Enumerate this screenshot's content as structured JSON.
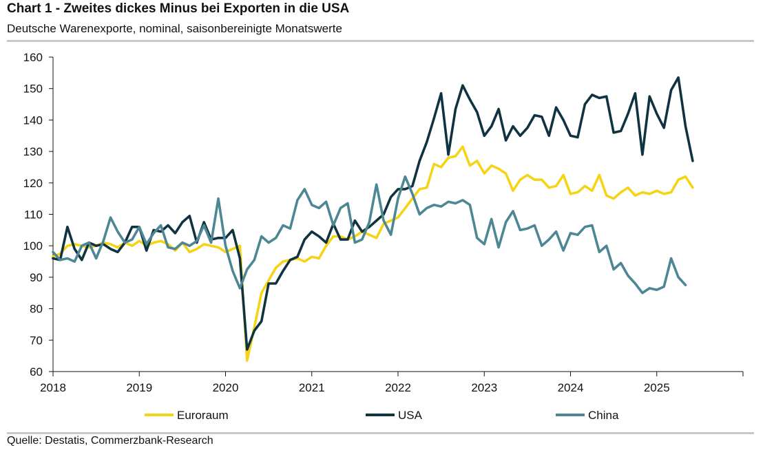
{
  "header": {
    "title": "Chart 1 - Zweites dickes Minus bei Exporten in die USA",
    "subtitle": "Deutsche Warenexporte, nominal, saisonbereinigte Monatswerte"
  },
  "footer": {
    "source": "Quelle: Destatis, Commerzbank-Research"
  },
  "chart_data": {
    "type": "line",
    "title": "Chart 1 - Zweites dickes Minus bei Exporten in die USA",
    "subtitle": "Deutsche Warenexporte, nominal, saisonbereinigte Monatswerte",
    "xlabel": "",
    "ylabel": "",
    "ylim": [
      60,
      160
    ],
    "yticks": [
      60,
      70,
      80,
      90,
      100,
      110,
      120,
      130,
      140,
      150,
      160
    ],
    "x_start": "2018-01",
    "x_end": "2025-12",
    "xticks": [
      "2018",
      "2019",
      "2020",
      "2021",
      "2022",
      "2023",
      "2024",
      "2025"
    ],
    "legend_position": "bottom",
    "series": [
      {
        "name": "Euroraum",
        "color": "#f5d417",
        "values": [
          96.5,
          97.5,
          100.0,
          100.5,
          100.0,
          99.5,
          100.0,
          101.0,
          100.5,
          99.5,
          101.0,
          100.0,
          101.5,
          100.0,
          101.0,
          101.5,
          100.5,
          98.5,
          101.0,
          98.0,
          99.0,
          100.5,
          100.0,
          99.5,
          98.0,
          99.0,
          100.0,
          63.5,
          74.0,
          85.0,
          89.0,
          93.0,
          95.0,
          95.5,
          96.0,
          95.0,
          96.5,
          96.0,
          100.0,
          103.0,
          103.0,
          102.0,
          103.0,
          104.5,
          103.5,
          102.5,
          107.0,
          108.0,
          109.0,
          112.0,
          115.0,
          118.0,
          118.5,
          126.0,
          125.0,
          128.0,
          128.5,
          131.5,
          125.5,
          127.0,
          123.0,
          125.5,
          124.5,
          123.0,
          117.5,
          121.0,
          122.5,
          121.0,
          121.0,
          118.5,
          119.0,
          122.5,
          116.5,
          117.0,
          119.0,
          117.5,
          122.5,
          116.0,
          115.0,
          117.0,
          118.5,
          116.0,
          117.0,
          116.5,
          117.5,
          116.5,
          117.0,
          121.0,
          122.0,
          118.5
        ]
      },
      {
        "name": "USA",
        "color": "#0f3340",
        "values": [
          96.0,
          95.5,
          106.0,
          99.0,
          95.5,
          101.0,
          100.0,
          100.5,
          99.0,
          98.0,
          101.0,
          106.0,
          106.0,
          98.5,
          105.0,
          104.5,
          106.5,
          104.0,
          107.5,
          109.5,
          101.0,
          107.5,
          102.0,
          102.5,
          102.5,
          105.0,
          96.0,
          67.0,
          73.0,
          76.0,
          88.0,
          88.0,
          92.0,
          95.5,
          96.5,
          102.0,
          104.5,
          103.0,
          101.0,
          107.0,
          102.0,
          102.0,
          108.0,
          104.5,
          106.0,
          108.0,
          110.0,
          115.5,
          118.0,
          118.0,
          119.0,
          127.0,
          133.0,
          140.5,
          148.5,
          129.0,
          143.5,
          151.0,
          146.5,
          142.5,
          135.0,
          138.0,
          143.5,
          133.5,
          138.0,
          135.0,
          137.5,
          141.5,
          141.0,
          135.0,
          144.0,
          140.0,
          135.0,
          134.5,
          145.0,
          148.0,
          147.0,
          147.5,
          136.0,
          136.5,
          142.0,
          148.5,
          129.0,
          147.5,
          142.0,
          137.5,
          149.5,
          153.5,
          138.0,
          127.0
        ]
      },
      {
        "name": "China",
        "color": "#4d8793",
        "values": [
          98.0,
          95.5,
          96.0,
          95.0,
          100.0,
          101.0,
          96.0,
          101.5,
          109.0,
          104.5,
          101.0,
          102.0,
          106.0,
          100.5,
          104.0,
          106.5,
          99.5,
          99.0,
          101.0,
          100.0,
          101.5,
          106.5,
          101.0,
          115.0,
          100.0,
          92.0,
          86.5,
          92.5,
          95.5,
          103.0,
          101.0,
          102.5,
          106.5,
          105.5,
          114.5,
          118.0,
          113.0,
          112.0,
          114.0,
          106.5,
          112.0,
          113.5,
          101.0,
          102.0,
          107.5,
          119.5,
          108.0,
          103.5,
          115.0,
          122.0,
          116.5,
          110.0,
          112.0,
          113.0,
          112.5,
          114.0,
          113.5,
          114.5,
          113.0,
          102.5,
          100.5,
          108.5,
          99.5,
          107.5,
          111.0,
          105.0,
          105.5,
          106.5,
          100.0,
          102.0,
          104.5,
          98.5,
          104.0,
          103.5,
          106.0,
          106.5,
          98.0,
          100.0,
          92.5,
          94.5,
          90.5,
          88.0,
          85.0,
          86.5,
          86.0,
          87.0,
          96.0,
          90.0,
          87.5
        ]
      }
    ]
  }
}
